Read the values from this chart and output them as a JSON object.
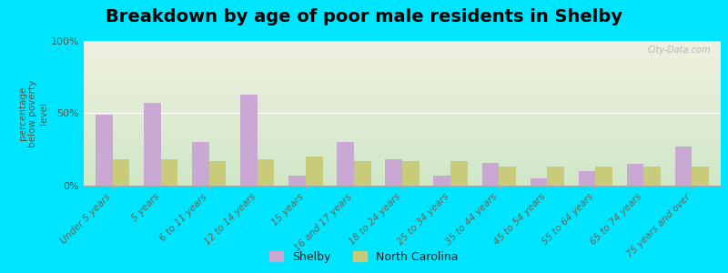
{
  "title": "Breakdown by age of poor male residents in Shelby",
  "ylabel": "percentage\nbelow poverty\nlevel",
  "categories": [
    "Under 5 years",
    "5 years",
    "6 to 11 years",
    "12 to 14 years",
    "15 years",
    "16 and 17 years",
    "18 to 24 years",
    "25 to 34 years",
    "35 to 44 years",
    "45 to 54 years",
    "55 to 64 years",
    "65 to 74 years",
    "75 years and over"
  ],
  "shelby_values": [
    49,
    57,
    30,
    63,
    7,
    30,
    18,
    7,
    16,
    5,
    10,
    15,
    27
  ],
  "nc_values": [
    18,
    18,
    17,
    18,
    20,
    17,
    17,
    17,
    13,
    13,
    13,
    13,
    13
  ],
  "shelby_color": "#c9a8d4",
  "nc_color": "#c8cc7a",
  "outer_bg_color": "#00e5ff",
  "ylim": [
    0,
    100
  ],
  "yticks": [
    0,
    50,
    100
  ],
  "ytick_labels": [
    "0%",
    "50%",
    "100%"
  ],
  "title_fontsize": 14,
  "label_fontsize": 7.5,
  "legend_labels": [
    "Shelby",
    "North Carolina"
  ],
  "watermark": "City-Data.com",
  "grad_top_color": "#d0e8c8",
  "grad_bottom_color": "#f0f0e0"
}
